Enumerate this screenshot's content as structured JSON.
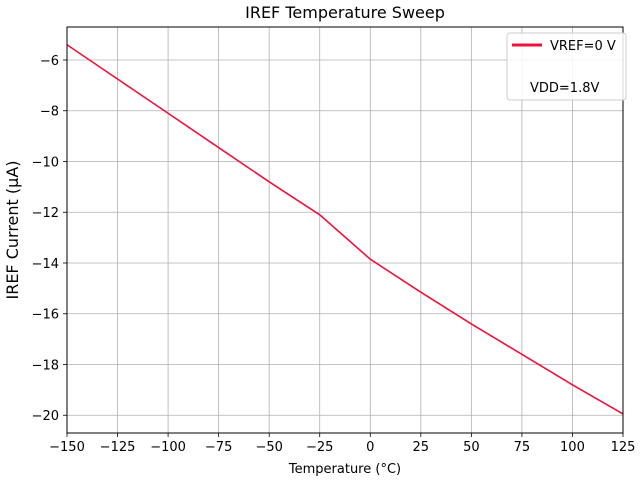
{
  "chart_data": {
    "type": "line",
    "title": "IREF Temperature Sweep",
    "xlabel": "Temperature (°C)",
    "ylabel": "IREF Current (μA)",
    "xlim": [
      -150,
      125
    ],
    "ylim": [
      -20.7,
      -4.7
    ],
    "xticks": [
      -150,
      -125,
      -100,
      -75,
      -50,
      -25,
      0,
      25,
      50,
      75,
      100,
      125
    ],
    "yticks": [
      -20,
      -18,
      -16,
      -14,
      -12,
      -10,
      -8,
      -6
    ],
    "xtick_labels": [
      "−150",
      "−125",
      "−100",
      "−75",
      "−50",
      "−25",
      "0",
      "25",
      "50",
      "75",
      "100",
      "125"
    ],
    "ytick_labels": [
      "−20",
      "−18",
      "−16",
      "−14",
      "−12",
      "−10",
      "−8",
      "−6"
    ],
    "grid": true,
    "legend_position": "top-right",
    "series": [
      {
        "name": "VREF=0 V",
        "color": "#f0113a",
        "x": [
          -150,
          -125,
          -100,
          -75,
          -50,
          -25,
          0,
          25,
          50,
          75,
          100,
          125
        ],
        "y": [
          -5.4,
          -6.75,
          -8.1,
          -9.45,
          -10.8,
          -12.1,
          -13.85,
          -15.15,
          -16.4,
          -17.6,
          -18.8,
          -19.95
        ]
      }
    ],
    "annotation": "VDD=1.8V"
  }
}
